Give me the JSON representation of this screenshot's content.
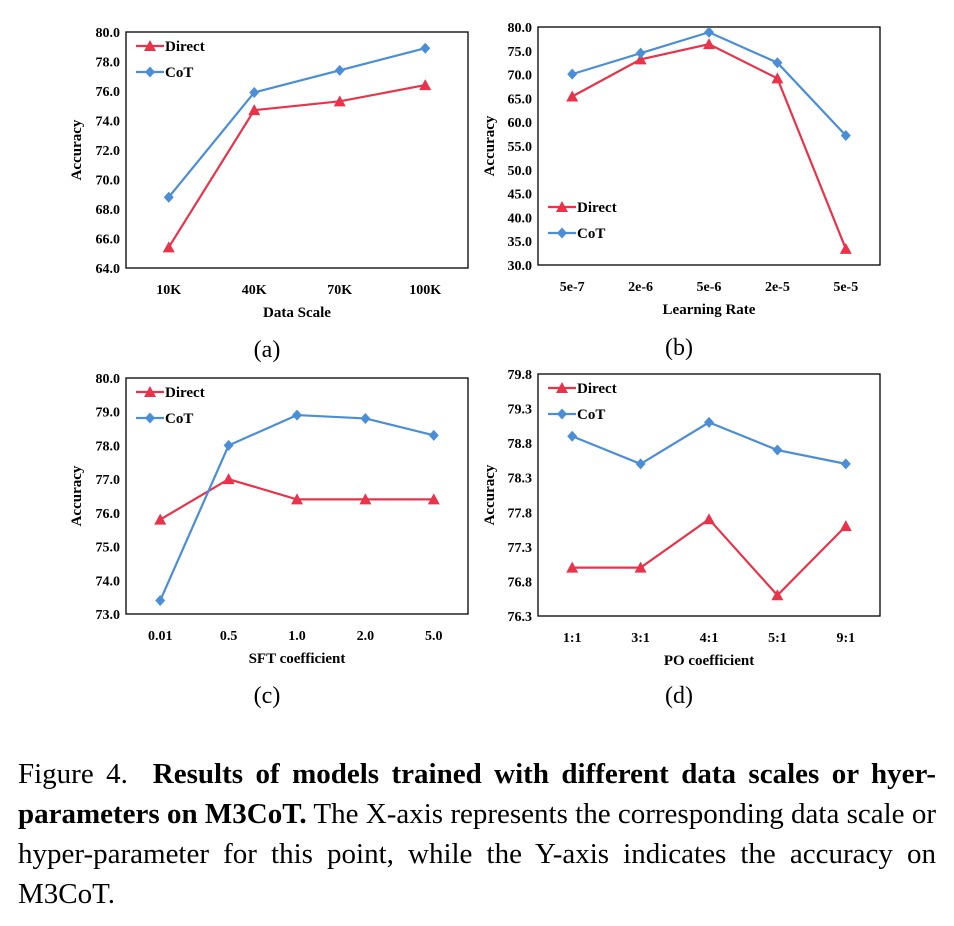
{
  "colors": {
    "direct": "#e8334a",
    "cot": "#4a8ed6"
  },
  "chart_data": [
    {
      "type": "line",
      "panel_label": "(a)",
      "categories": [
        "10K",
        "40K",
        "70K",
        "100K"
      ],
      "xlabel": "Data Scale",
      "ylabel": "Accuracy",
      "ylim": [
        64.0,
        80.0
      ],
      "yticks": [
        "64.0",
        "66.0",
        "68.0",
        "70.0",
        "72.0",
        "74.0",
        "76.0",
        "78.0",
        "80.0"
      ],
      "legend_position": "top-left",
      "series": [
        {
          "name": "Direct",
          "marker": "triangle",
          "values": [
            65.4,
            74.7,
            75.3,
            76.4
          ]
        },
        {
          "name": "CoT",
          "marker": "diamond",
          "values": [
            68.8,
            75.9,
            77.4,
            78.9
          ]
        }
      ]
    },
    {
      "type": "line",
      "panel_label": "(b)",
      "categories": [
        "5e-7",
        "2e-6",
        "5e-6",
        "2e-5",
        "5e-5"
      ],
      "xlabel": "Learning Rate",
      "ylabel": "Accuracy",
      "ylim": [
        30.0,
        80.0
      ],
      "yticks": [
        "30.0",
        "35.0",
        "40.0",
        "45.0",
        "50.0",
        "55.0",
        "60.0",
        "65.0",
        "70.0",
        "75.0",
        "80.0"
      ],
      "legend_position": "bottom-left",
      "series": [
        {
          "name": "Direct",
          "marker": "triangle",
          "values": [
            65.4,
            73.2,
            76.4,
            69.2,
            33.4
          ]
        },
        {
          "name": "CoT",
          "marker": "diamond",
          "values": [
            70.1,
            74.5,
            78.9,
            72.5,
            57.2
          ]
        }
      ]
    },
    {
      "type": "line",
      "panel_label": "(c)",
      "categories": [
        "0.01",
        "0.5",
        "1.0",
        "2.0",
        "5.0"
      ],
      "xlabel": "SFT coefficient",
      "ylabel": "Accuracy",
      "ylim": [
        73.0,
        80.0
      ],
      "yticks": [
        "73.0",
        "74.0",
        "75.0",
        "76.0",
        "77.0",
        "78.0",
        "79.0",
        "80.0"
      ],
      "legend_position": "top-left",
      "series": [
        {
          "name": "Direct",
          "marker": "triangle",
          "values": [
            75.8,
            77.0,
            76.4,
            76.4,
            76.4
          ]
        },
        {
          "name": "CoT",
          "marker": "diamond",
          "values": [
            73.4,
            78.0,
            78.9,
            78.8,
            78.3
          ]
        }
      ]
    },
    {
      "type": "line",
      "panel_label": "(d)",
      "categories": [
        "1:1",
        "3:1",
        "4:1",
        "5:1",
        "9:1"
      ],
      "xlabel": "PO coefficient",
      "ylabel": "Accuracy",
      "ylim": [
        76.3,
        79.8
      ],
      "yticks": [
        "76.3",
        "76.8",
        "77.3",
        "77.8",
        "78.3",
        "78.8",
        "79.3",
        "79.8"
      ],
      "legend_position": "top-left",
      "series": [
        {
          "name": "Direct",
          "marker": "triangle",
          "values": [
            77.0,
            77.0,
            77.7,
            76.6,
            77.6
          ]
        },
        {
          "name": "CoT",
          "marker": "diamond",
          "values": [
            78.9,
            78.5,
            79.1,
            78.7,
            78.5
          ]
        }
      ]
    }
  ],
  "caption": {
    "label": "Figure 4.",
    "bold": "Results of models trained with different data scales or hyer-parameters on M3CoT.",
    "rest": "The X-axis represents the corresponding data scale or hyper-parameter for this point, while the Y-axis indicates the accuracy on M3CoT."
  }
}
